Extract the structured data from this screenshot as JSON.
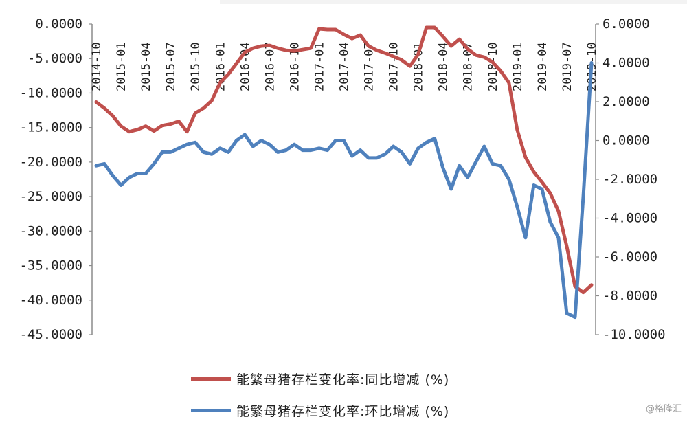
{
  "chart_data": {
    "type": "line",
    "x": [
      "2014-10",
      "2014-11",
      "2014-12",
      "2015-01",
      "2015-02",
      "2015-03",
      "2015-04",
      "2015-05",
      "2015-06",
      "2015-07",
      "2015-08",
      "2015-09",
      "2015-10",
      "2015-11",
      "2015-12",
      "2016-01",
      "2016-02",
      "2016-03",
      "2016-04",
      "2016-05",
      "2016-06",
      "2016-07",
      "2016-08",
      "2016-09",
      "2016-10",
      "2016-11",
      "2016-12",
      "2017-01",
      "2017-02",
      "2017-03",
      "2017-04",
      "2017-05",
      "2017-06",
      "2017-07",
      "2017-08",
      "2017-09",
      "2017-10",
      "2017-11",
      "2017-12",
      "2018-01",
      "2018-02",
      "2018-03",
      "2018-04",
      "2018-05",
      "2018-06",
      "2018-07",
      "2018-08",
      "2018-09",
      "2018-10",
      "2018-11",
      "2018-12",
      "2019-01",
      "2019-02",
      "2019-03",
      "2019-04",
      "2019-05",
      "2019-06",
      "2019-07",
      "2019-08",
      "2019-09",
      "2019-10"
    ],
    "x_tick_labels": [
      "2014-10",
      "2015-01",
      "2015-04",
      "2015-07",
      "2015-10",
      "2016-01",
      "2016-04",
      "2016-07",
      "2016-10",
      "2017-01",
      "2017-04",
      "2017-07",
      "2017-10",
      "2018-01",
      "2018-04",
      "2018-07",
      "2018-10",
      "2019-01",
      "2019-04",
      "2019-07",
      "2019-10"
    ],
    "y_left": {
      "ylim": [
        -45,
        0
      ],
      "tick_labels": [
        "0.0000",
        "-5.0000",
        "-10.0000",
        "-15.0000",
        "-20.0000",
        "-25.0000",
        "-30.0000",
        "-35.0000",
        "-40.0000",
        "-45.0000"
      ]
    },
    "y_right": {
      "ylim": [
        -10,
        6
      ],
      "tick_labels": [
        "6.0000",
        "4.0000",
        "2.0000",
        "0.0000",
        "-2.0000",
        "-4.0000",
        "-6.0000",
        "-8.0000",
        "-10.0000"
      ]
    },
    "series": [
      {
        "name": "能繁母猪存栏变化率:同比增减 (%)",
        "axis": "left",
        "color": "#c0504d",
        "values": [
          -11.3,
          -12.2,
          -13.3,
          -14.8,
          -15.6,
          -15.3,
          -14.8,
          -15.5,
          -14.7,
          -14.5,
          -14.1,
          -15.6,
          -12.9,
          -12.2,
          -11.1,
          -8.5,
          -7.3,
          -5.7,
          -4.1,
          -3.5,
          -3.2,
          -3.1,
          -3.5,
          -3.8,
          -3.9,
          -3.7,
          -3.5,
          -0.7,
          -0.8,
          -0.8,
          -1.5,
          -2.1,
          -1.6,
          -3.2,
          -3.8,
          -4.2,
          -4.7,
          -5.2,
          -6.1,
          -4.4,
          -0.5,
          -0.5,
          -1.8,
          -3.2,
          -2.2,
          -3.6,
          -4.5,
          -4.8,
          -5.5,
          -6.8,
          -8.5,
          -15.3,
          -19.3,
          -21.4,
          -22.9,
          -24.5,
          -27.1,
          -32.2,
          -38.0,
          -38.9,
          -37.8
        ]
      },
      {
        "name": "能繁母猪存栏变化率:环比增减 (%)",
        "axis": "right",
        "color": "#4f81bd",
        "values": [
          -1.3,
          -1.2,
          -1.8,
          -2.3,
          -1.9,
          -1.7,
          -1.7,
          -1.2,
          -0.6,
          -0.6,
          -0.4,
          -0.2,
          -0.1,
          -0.6,
          -0.7,
          -0.4,
          -0.6,
          0.0,
          0.3,
          -0.3,
          0.0,
          -0.2,
          -0.6,
          -0.5,
          -0.2,
          -0.5,
          -0.5,
          -0.4,
          -0.5,
          0.0,
          0.0,
          -0.8,
          -0.5,
          -0.9,
          -0.9,
          -0.7,
          -0.3,
          -0.6,
          -1.2,
          -0.4,
          -0.1,
          0.1,
          -1.4,
          -2.5,
          -1.3,
          -1.9,
          -1.1,
          -0.3,
          -1.2,
          -1.3,
          -2.0,
          -3.4,
          -5.0,
          -2.3,
          -2.5,
          -4.2,
          -5.0,
          -8.9,
          -9.1,
          -2.9,
          4.0
        ]
      }
    ],
    "legend_placement": "bottom",
    "grid": false
  },
  "watermark": "@格隆汇"
}
